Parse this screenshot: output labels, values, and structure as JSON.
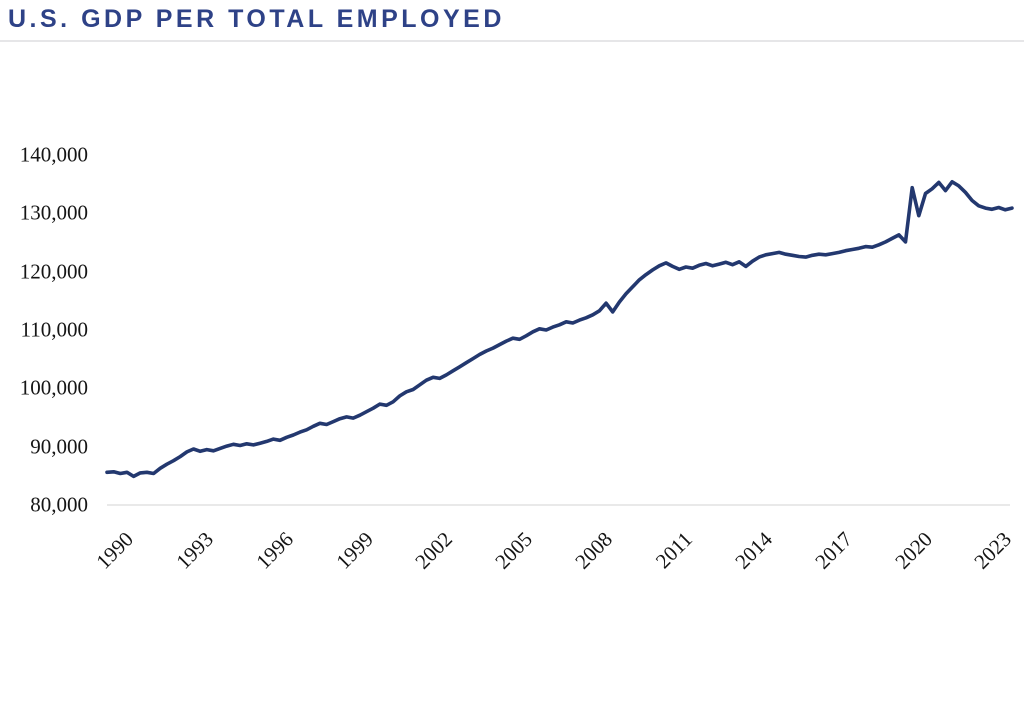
{
  "header": {
    "title": "U.S. GDP PER TOTAL EMPLOYED"
  },
  "colors": {
    "background": "#ffffff",
    "title_text": "#2e4287",
    "line": "#23386f",
    "axis_line": "#e2e2e2",
    "divider": "#e6e6e8",
    "tick_text": "#151515"
  },
  "chart_data": {
    "type": "line",
    "title": "U.S. GDP PER TOTAL EMPLOYED",
    "xlabel": "",
    "ylabel": "",
    "grid": false,
    "legend_position": "none",
    "xlim": [
      1990,
      2024
    ],
    "x_axis": {
      "tick_labels": [
        "1990",
        "1993",
        "1996",
        "1999",
        "2002",
        "2005",
        "2008",
        "2011",
        "2014",
        "2017",
        "2020",
        "2023"
      ],
      "tick_years": [
        1990,
        1993,
        1996,
        1999,
        2002,
        2005,
        2008,
        2011,
        2014,
        2017,
        2020,
        2023
      ]
    },
    "y_axis": {
      "ylim": [
        80000,
        140000
      ],
      "tick_labels": [
        "140,000",
        "130,000",
        "120,000",
        "110,000",
        "100,000",
        "90,000",
        "80,000"
      ],
      "tick_values": [
        140000,
        130000,
        120000,
        110000,
        100000,
        90000,
        80000
      ]
    },
    "series": [
      {
        "name": "U.S. GDP per total employed",
        "color": "#23386f",
        "x_start": 1990.0,
        "x_step": 0.25,
        "values": [
          85600,
          85700,
          85400,
          85600,
          84900,
          85500,
          85600,
          85400,
          86300,
          87000,
          87600,
          88300,
          89100,
          89600,
          89200,
          89500,
          89300,
          89700,
          90100,
          90400,
          90200,
          90500,
          90300,
          90600,
          90900,
          91300,
          91100,
          91600,
          92000,
          92500,
          92900,
          93500,
          94000,
          93800,
          94300,
          94800,
          95100,
          94900,
          95400,
          96000,
          96600,
          97300,
          97100,
          97700,
          98700,
          99400,
          99800,
          100600,
          101400,
          101900,
          101700,
          102300,
          103000,
          103700,
          104400,
          105100,
          105800,
          106400,
          106900,
          107500,
          108100,
          108600,
          108400,
          109000,
          109700,
          110200,
          110000,
          110500,
          110900,
          111400,
          111200,
          111700,
          112100,
          112600,
          113300,
          114600,
          113100,
          114800,
          116200,
          117400,
          118600,
          119500,
          120300,
          121000,
          121500,
          120900,
          120400,
          120800,
          120600,
          121100,
          121400,
          121000,
          121300,
          121600,
          121200,
          121700,
          120900,
          121800,
          122500,
          122900,
          123100,
          123300,
          123000,
          122800,
          122600,
          122500,
          122800,
          123000,
          122900,
          123100,
          123300,
          123600,
          123800,
          124000,
          124300,
          124200,
          124600,
          125100,
          125700,
          126300,
          125100,
          134400,
          129600,
          133400,
          134200,
          135300,
          133900,
          135400,
          134700,
          133600,
          132200,
          131300,
          130900,
          130700,
          131000,
          130600,
          130900
        ]
      }
    ]
  }
}
